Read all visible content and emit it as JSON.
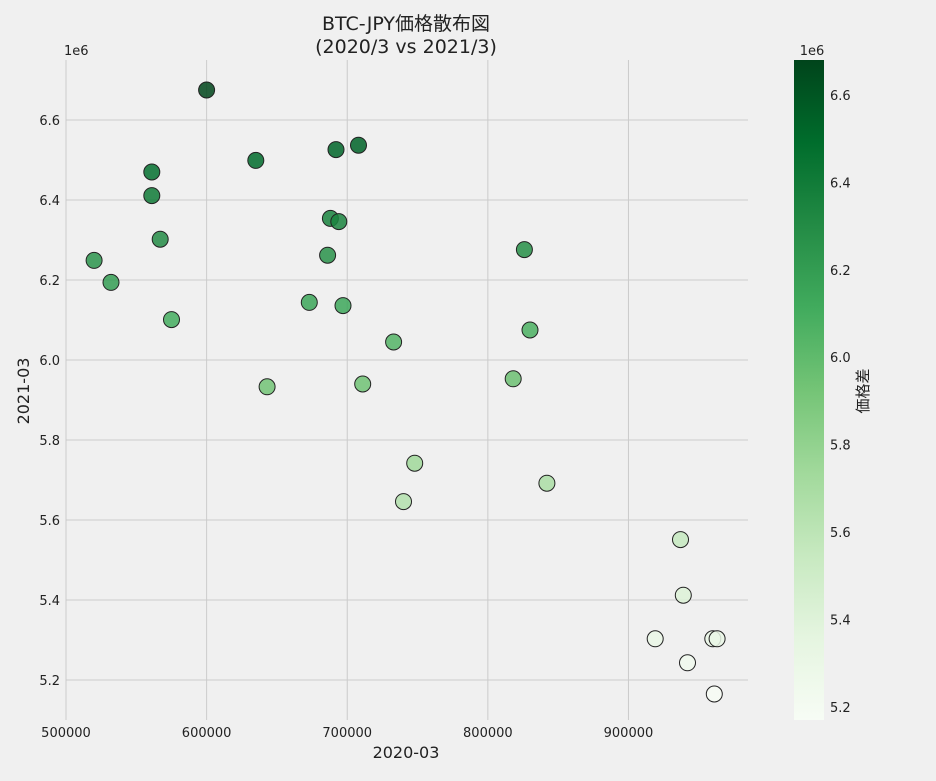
{
  "chart_data": {
    "type": "scatter",
    "title": "BTC-JPY価格散布図",
    "subtitle": "(2020/3 vs 2021/3)",
    "xlabel": "2020-03",
    "ylabel": "2021-03",
    "x_offset_label": "1e6",
    "xlim": [
      500000,
      985000
    ],
    "ylim": [
      5100000,
      6750000
    ],
    "xticks": [
      500000,
      600000,
      700000,
      800000,
      900000
    ],
    "yticks": [
      5200000,
      5400000,
      5600000,
      5800000,
      6000000,
      6200000,
      6400000,
      6600000
    ],
    "ytick_labels": [
      "5.2",
      "5.4",
      "5.6",
      "5.8",
      "6.0",
      "6.2",
      "6.4",
      "6.6"
    ],
    "y_offset_label": "1e6",
    "grid": true,
    "colorbar": {
      "label": "価格差",
      "offset_label": "1e6",
      "range": [
        5170000,
        6680000
      ],
      "ticks": [
        5200000,
        5400000,
        5600000,
        5800000,
        6000000,
        6200000,
        6400000,
        6600000
      ],
      "tick_labels": [
        "5.2",
        "5.4",
        "5.6",
        "5.8",
        "6.0",
        "6.2",
        "6.4",
        "6.6"
      ],
      "colormap": "Greens",
      "color_low": "#f7fcf5",
      "color_high": "#00441b"
    },
    "points": [
      {
        "x": 600000,
        "y": 6675000
      },
      {
        "x": 708000,
        "y": 6537000
      },
      {
        "x": 692000,
        "y": 6526000
      },
      {
        "x": 635000,
        "y": 6499000
      },
      {
        "x": 561000,
        "y": 6470000
      },
      {
        "x": 561000,
        "y": 6411000
      },
      {
        "x": 688000,
        "y": 6354000
      },
      {
        "x": 694000,
        "y": 6346000
      },
      {
        "x": 567000,
        "y": 6302000
      },
      {
        "x": 826000,
        "y": 6276000
      },
      {
        "x": 686000,
        "y": 6262000
      },
      {
        "x": 520000,
        "y": 6249000
      },
      {
        "x": 532000,
        "y": 6194000
      },
      {
        "x": 673000,
        "y": 6144000
      },
      {
        "x": 697000,
        "y": 6136000
      },
      {
        "x": 575000,
        "y": 6101000
      },
      {
        "x": 830000,
        "y": 6075000
      },
      {
        "x": 733000,
        "y": 6045000
      },
      {
        "x": 818000,
        "y": 5953000
      },
      {
        "x": 711000,
        "y": 5940000
      },
      {
        "x": 643000,
        "y": 5933000
      },
      {
        "x": 748000,
        "y": 5742000
      },
      {
        "x": 842000,
        "y": 5692000
      },
      {
        "x": 740000,
        "y": 5646000
      },
      {
        "x": 937000,
        "y": 5551000
      },
      {
        "x": 939000,
        "y": 5412000
      },
      {
        "x": 919000,
        "y": 5303000
      },
      {
        "x": 960000,
        "y": 5303000
      },
      {
        "x": 963000,
        "y": 5303000
      },
      {
        "x": 942000,
        "y": 5243000
      },
      {
        "x": 961000,
        "y": 5165000
      }
    ]
  }
}
